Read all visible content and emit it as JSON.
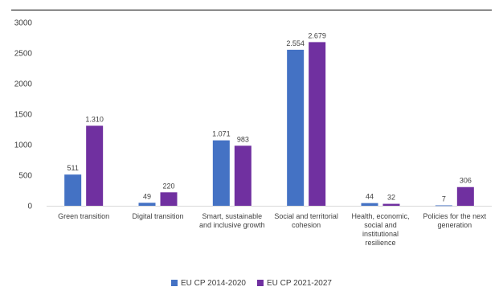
{
  "chart_data": {
    "type": "bar",
    "categories": [
      [
        "Green transition"
      ],
      [
        "Digital transition"
      ],
      [
        "Smart, sustainable",
        "and inclusive growth"
      ],
      [
        "Social and territorial",
        "cohesion"
      ],
      [
        "Health, economic,",
        "social and",
        "institutional",
        "resilience"
      ],
      [
        "Policies for the next",
        "generation"
      ]
    ],
    "series": [
      {
        "name": "EU CP 2014-2020",
        "color": "#4472C4",
        "values": [
          511,
          49,
          1071,
          2554,
          44,
          7
        ],
        "labels": [
          "511",
          "49",
          "1.071",
          "2.554",
          "44",
          "7"
        ]
      },
      {
        "name": "EU CP 2021-2027",
        "color": "#7030A0",
        "values": [
          1310,
          220,
          983,
          2679,
          32,
          306
        ],
        "labels": [
          "1.310",
          "220",
          "983",
          "2.679",
          "32",
          "306"
        ]
      }
    ],
    "ylim": [
      0,
      3000
    ],
    "yticks": [
      0,
      500,
      1000,
      1500,
      2000,
      2500,
      3000
    ],
    "ytick_labels": [
      "0",
      "500",
      "1000",
      "1500",
      "2000",
      "2500",
      "3000"
    ],
    "grid": false,
    "legend_position": "bottom"
  }
}
